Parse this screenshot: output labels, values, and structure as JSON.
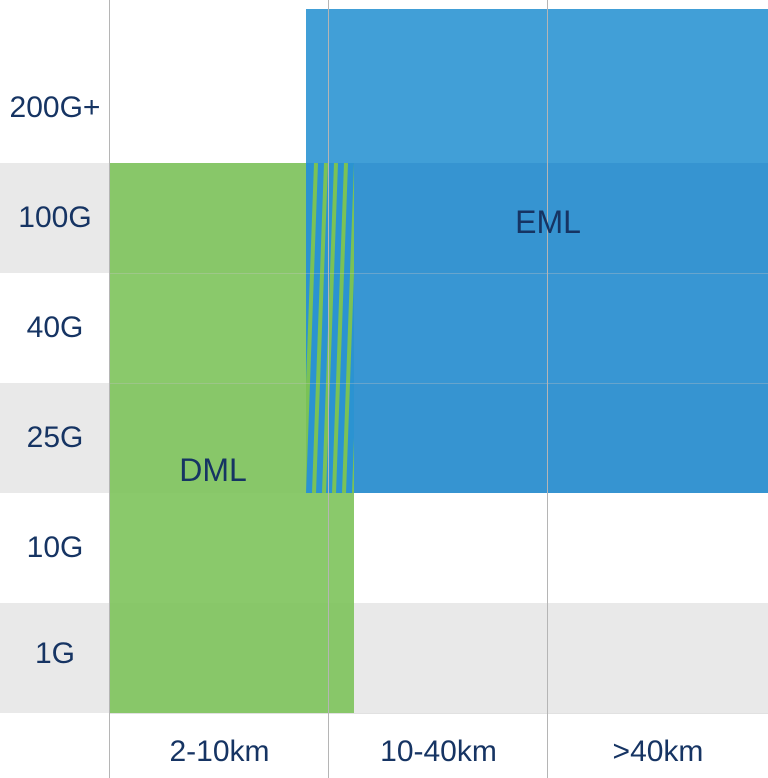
{
  "rows": [
    "200G+",
    "100G",
    "40G",
    "25G",
    "10G",
    "1G"
  ],
  "columns": [
    "2-10km",
    "10-40km",
    ">40km"
  ],
  "regions": {
    "eml": {
      "label": "EML",
      "color": "#2b93d1"
    },
    "dml": {
      "label": "DML",
      "color": "#7ac256"
    }
  }
}
